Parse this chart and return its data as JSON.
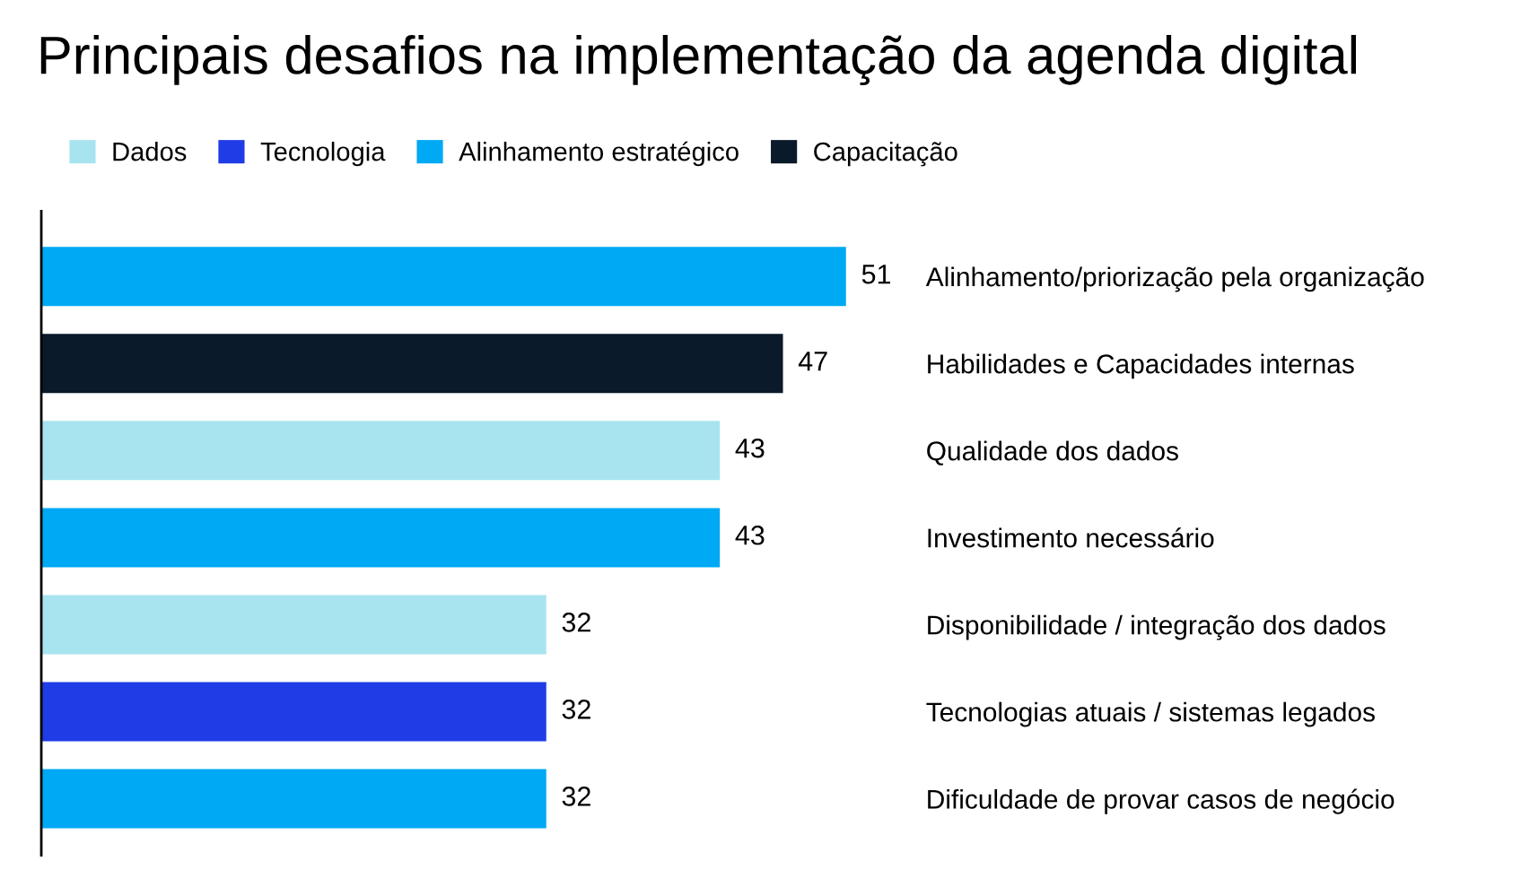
{
  "chart_data": {
    "type": "bar",
    "orientation": "horizontal",
    "title": "Principais desafios na implementação da agenda digital",
    "categories": [
      "Alinhamento/priorização pela organização",
      "Habilidades e Capacidades internas",
      "Qualidade dos dados",
      "Investimento necessário",
      "Disponibilidade / integração dos dados",
      "Tecnologias atuais / sistemas legados",
      "Dificuldade de provar casos de negócio"
    ],
    "series": [
      {
        "name": "Dados",
        "color": "#a8e4ef",
        "values": [
          null,
          null,
          43,
          null,
          32,
          null,
          null
        ]
      },
      {
        "name": "Tecnologia",
        "color": "#1f3ce6",
        "values": [
          null,
          null,
          null,
          null,
          null,
          32,
          null
        ]
      },
      {
        "name": "Alinhamento estratégico",
        "color": "#00a9f4",
        "values": [
          51,
          null,
          null,
          43,
          null,
          null,
          32
        ]
      },
      {
        "name": "Capacitação",
        "color": "#0a1a2a",
        "values": [
          null,
          47,
          null,
          null,
          null,
          null,
          null
        ]
      }
    ],
    "data_labels": true,
    "legend": "top",
    "grid": false
  }
}
